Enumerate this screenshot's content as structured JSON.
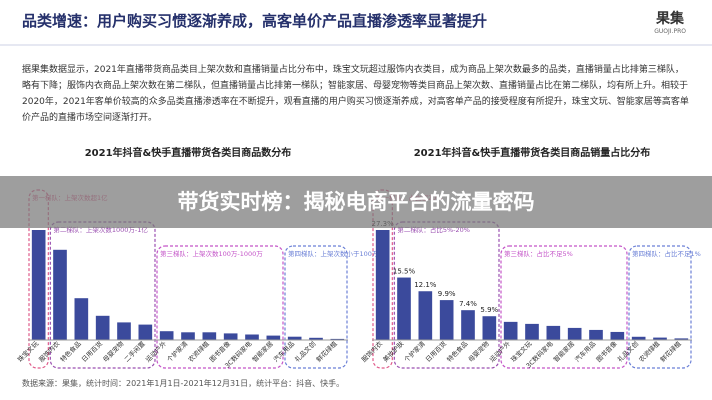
{
  "header": {
    "title": "品类增速：用户购买习惯逐渐养成，高客单价产品直播渗透率显著提升",
    "logo": "果集",
    "logo_sub": "GUOJI.PRO"
  },
  "paragraph": "据果集数据显示，2021年直播带货商品类目上架次数和直播销量占比分布中，珠宝文玩超过服饰内衣类目，成为商品上架次数最多的品类，直播销量占比排第三梯队，略有下降；服饰内衣商品上架次数在第二梯队，但直播销量占比排第一梯队；智能家居、母婴宠物等类目商品上架次数、直播销量占比在第二梯队，均有所上升。相较于2020年，2021年客单价较高的众多品类直播渗透率在不断提升，观看直播的用户购买习惯逐渐养成，对高客单产品的接受程度有所提升，珠宝文玩、智能家居等高客单价产品的直播市场空间逐渐打开。",
  "banner": "带货实时榜：揭秘电商平台的流量密码",
  "charts": [
    {
      "type": "bar",
      "title": "2021年抖音&快手直播带货各类目商品数分布",
      "color": "#3b4a9c",
      "tiers": [
        "第一梯队：上架次数超1亿",
        "第二梯队：上架次数1000万-1亿",
        "第三梯队：上架次数100万-1000万",
        "第四梯队：上架次数小于100万"
      ],
      "categories": [
        "珠宝文玩",
        "服饰内衣",
        "特色食品",
        "日用百货",
        "母婴宠物",
        "二手闲置",
        "运动户外",
        "个护家清",
        "农资绿植",
        "图书音像",
        "3C数码家电",
        "智能家居",
        "汽车用品",
        "礼品文创",
        "鲜花绿植"
      ],
      "values": [
        100,
        82,
        38,
        22,
        16,
        14,
        8,
        7,
        7,
        6,
        5,
        4,
        3,
        2,
        1
      ]
    },
    {
      "type": "bar",
      "title": "2021年抖音&快手直播带货各类目商品销量占比分布",
      "color": "#3b4a9c",
      "tiers": [
        "第一梯队：占比超20%",
        "第二梯队：占比5%-20%",
        "第三梯队：占比不足5%",
        "第四梯队：占比不足1%"
      ],
      "categories": [
        "服饰内衣",
        "美妆护肤",
        "个护家清",
        "日用百货",
        "特色食品",
        "母婴宠物",
        "运动户外",
        "珠宝文玩",
        "3C数码家电",
        "智能家居",
        "汽车用品",
        "图书音像",
        "礼品文创",
        "农资绿植",
        "鲜花绿植"
      ],
      "values": [
        27.3,
        15.5,
        12.1,
        9.9,
        7.4,
        5.9,
        4.5,
        4,
        3.5,
        3,
        2.5,
        2,
        0.8,
        0.6,
        0.4
      ],
      "value_labels": [
        "27.3%",
        "15.5%",
        "12.1%",
        "9.9%",
        "7.4%",
        "5.9%",
        null,
        null,
        null,
        null,
        null,
        null,
        null,
        null,
        null
      ]
    }
  ],
  "footer": "数据来源：果集，统计时间：2021年1月1日-2021年12月31日，统计平台：抖音、快手。"
}
